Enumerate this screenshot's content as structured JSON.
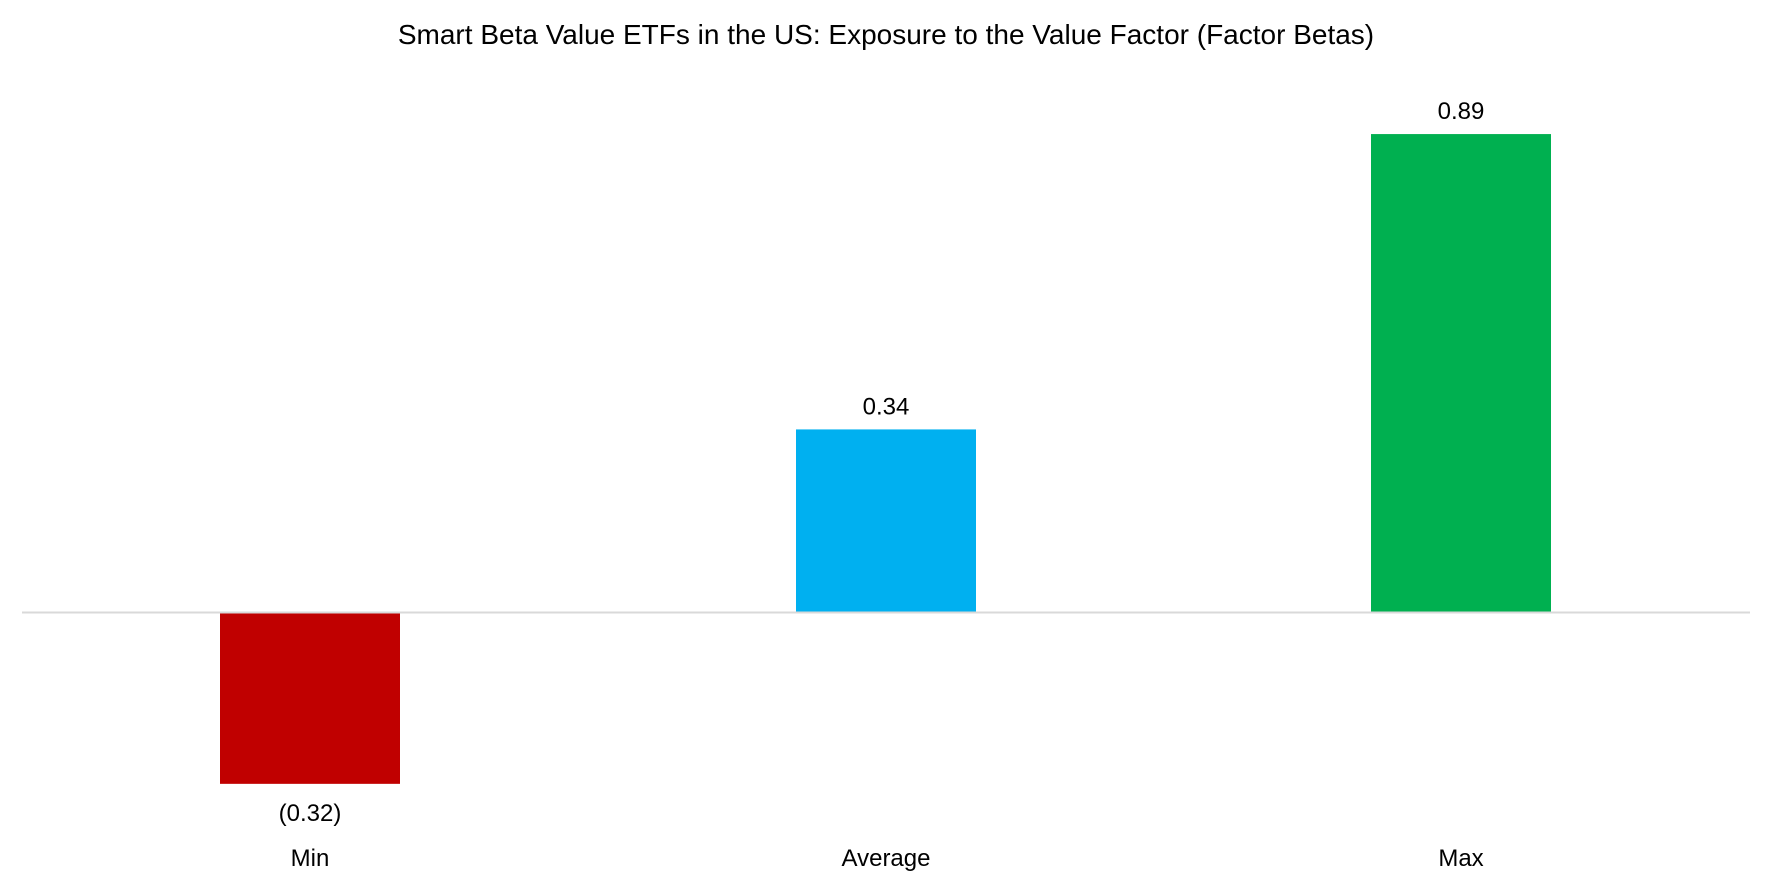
{
  "chart_data": {
    "type": "bar",
    "title": "Smart Beta Value ETFs in the US: Exposure to the Value Factor (Factor Betas)",
    "xlabel": "",
    "ylabel": "",
    "categories": [
      "Min",
      "Average",
      "Max"
    ],
    "values": [
      -0.32,
      0.34,
      0.89
    ],
    "value_labels": [
      "(0.32)",
      "0.34",
      "0.89"
    ],
    "bar_colors": [
      "#C00000",
      "#00B0F0",
      "#00B050"
    ],
    "baseline_color": "#D9D9D9",
    "ylim": [
      -0.32,
      0.89
    ],
    "grid": false,
    "legend": "none"
  }
}
